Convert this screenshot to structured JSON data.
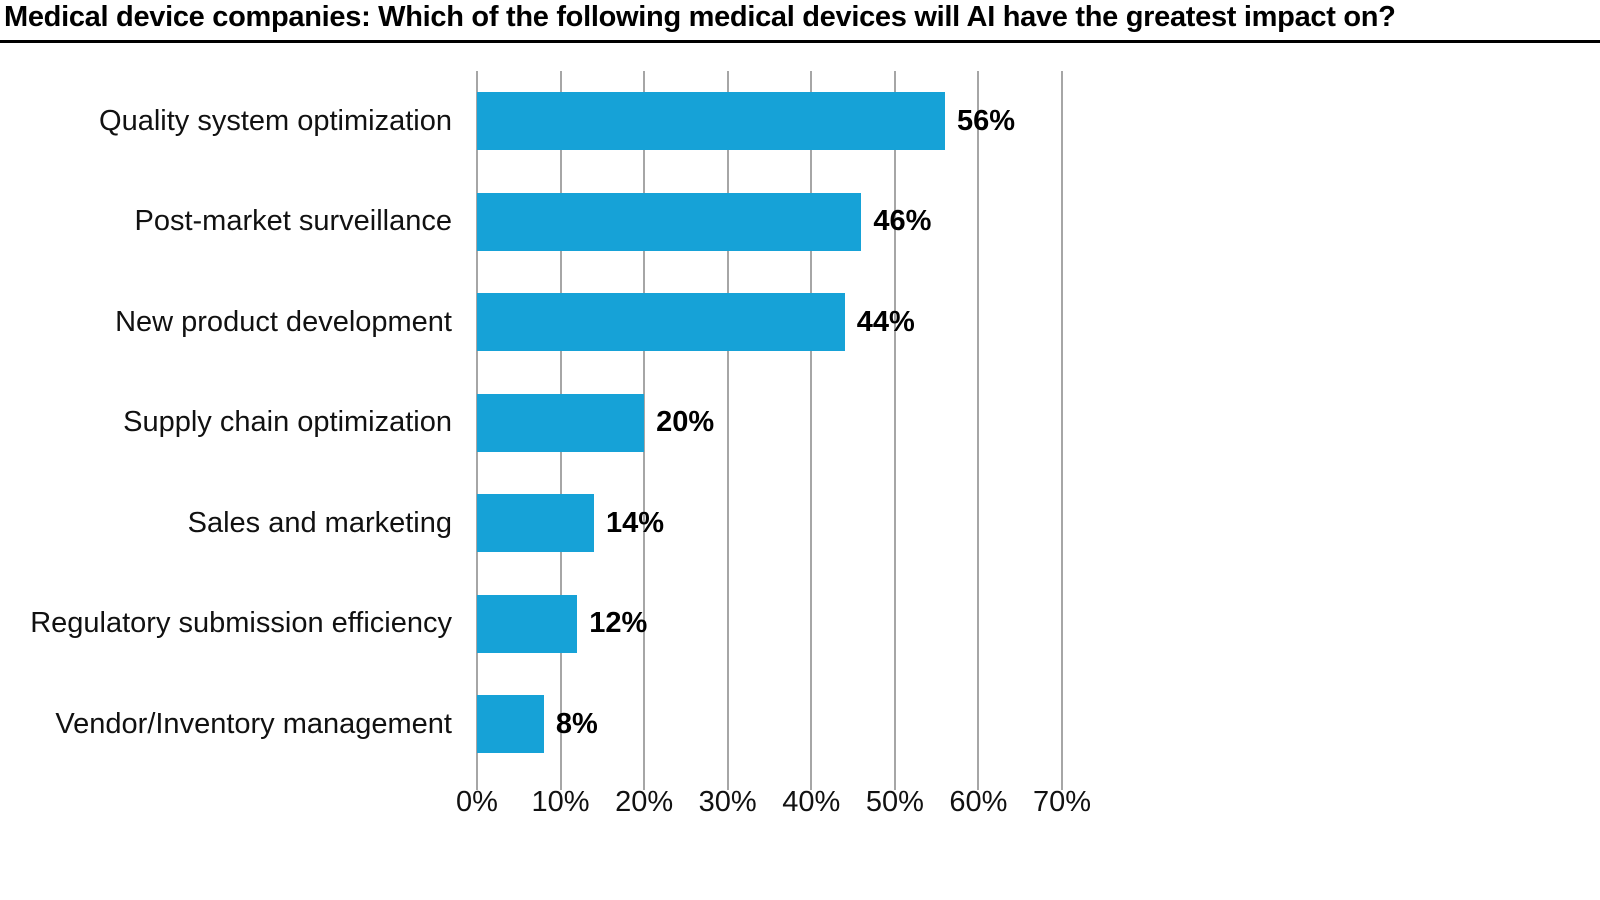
{
  "header": {
    "title": "Medical device companies: Which of the following medical devices will AI have the greatest impact on?"
  },
  "chart_data": {
    "type": "bar",
    "orientation": "horizontal",
    "title": "Medical device companies: Which of the following medical devices will AI have the greatest impact on?",
    "categories": [
      "Quality system optimization",
      "Post-market surveillance",
      "New product development",
      "Supply chain optimization",
      "Sales and marketing",
      "Regulatory submission efficiency",
      "Vendor/Inventory management"
    ],
    "values": [
      56,
      46,
      44,
      20,
      14,
      12,
      8
    ],
    "value_labels": [
      "56%",
      "46%",
      "44%",
      "20%",
      "14%",
      "12%",
      "8%"
    ],
    "xlabel": "",
    "ylabel": "",
    "xlim": [
      0,
      70
    ],
    "x_ticks": [
      0,
      10,
      20,
      30,
      40,
      50,
      60,
      70
    ],
    "x_tick_labels": [
      "0%",
      "10%",
      "20%",
      "30%",
      "40%",
      "50%",
      "60%",
      "70%"
    ],
    "grid": "vertical-on",
    "legend": "none",
    "colors": {
      "bar": "#16a2d7",
      "gridline": "#a6a6a6",
      "title_rule": "#000000",
      "text": "#000000"
    }
  }
}
